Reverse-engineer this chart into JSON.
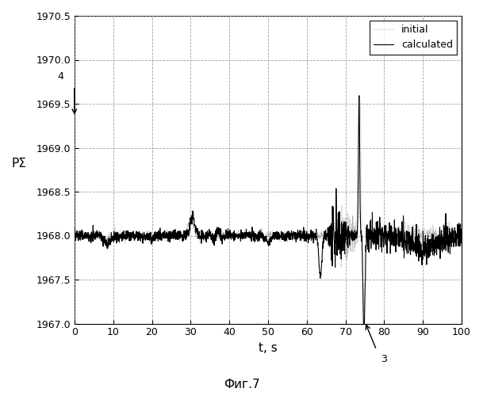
{
  "title": "",
  "xlabel": "t, s",
  "ylabel": "PΣ",
  "caption": "Фиг.7",
  "xlim": [
    0,
    100
  ],
  "ylim": [
    1967,
    1970.5
  ],
  "yticks": [
    1967,
    1967.5,
    1968,
    1968.5,
    1969,
    1969.5,
    1970,
    1970.5
  ],
  "xticks": [
    0,
    10,
    20,
    30,
    40,
    50,
    60,
    70,
    80,
    90,
    100
  ],
  "grid_color": "#888888",
  "bg_color": "#ffffff",
  "line_color_initial": "#aaaaaa",
  "line_color_calculated": "#000000",
  "legend_labels": [
    "initial",
    "calculated"
  ],
  "annotation_left_text": "℗4",
  "annotation_right_text": "3",
  "base_value": 1968.0,
  "noise_amplitude": 0.05,
  "seed": 42
}
